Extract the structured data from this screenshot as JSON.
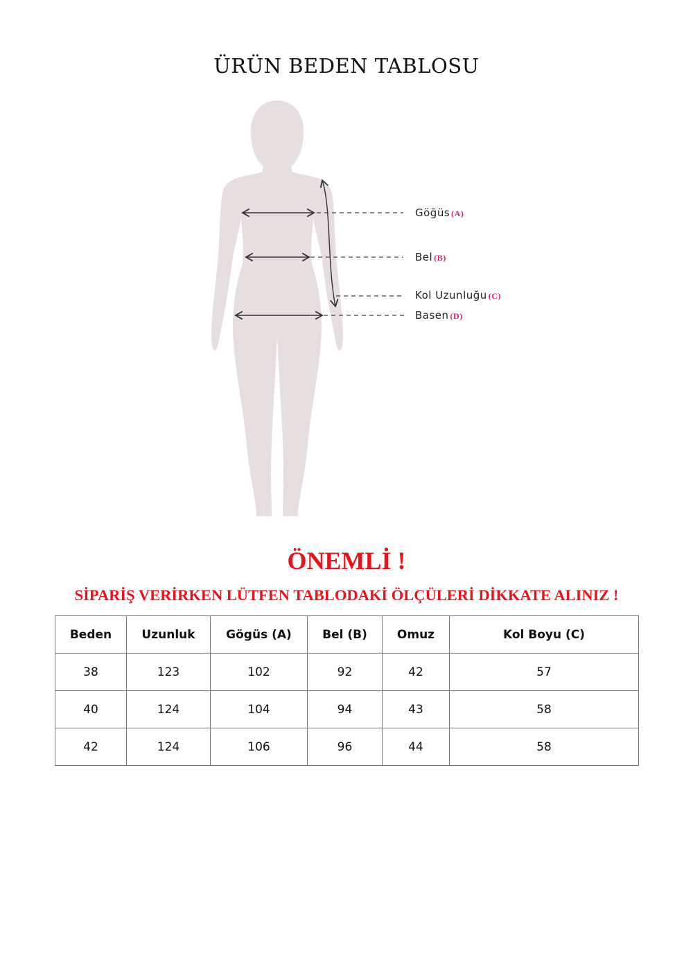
{
  "title": "ÜRÜN BEDEN TABLOSU",
  "diagram": {
    "labels": [
      {
        "text": "Göğüs",
        "tag": "(A)"
      },
      {
        "text": "Bel",
        "tag": "(B)"
      },
      {
        "text": "Kol Uzunluğu",
        "tag": "(C)"
      },
      {
        "text": "Basen",
        "tag": "(D)"
      }
    ],
    "colors": {
      "figure": "#e7dfdf",
      "tag": "#e0157a"
    }
  },
  "notice": {
    "heading": "ÖNEMLİ !",
    "message": "SİPARİŞ VERİRKEN LÜTFEN TABLODAKİ ÖLÇÜLERİ DİKKATE ALINIZ !",
    "color": "#e8141b"
  },
  "size_table": {
    "headers": [
      "Beden",
      "Uzunluk",
      "Gögüs (A)",
      "Bel (B)",
      "Omuz",
      "Kol Boyu (C)"
    ],
    "rows": [
      [
        "38",
        "123",
        "102",
        "92",
        "42",
        "57"
      ],
      [
        "40",
        "124",
        "104",
        "94",
        "43",
        "58"
      ],
      [
        "42",
        "124",
        "106",
        "96",
        "44",
        "58"
      ]
    ]
  }
}
